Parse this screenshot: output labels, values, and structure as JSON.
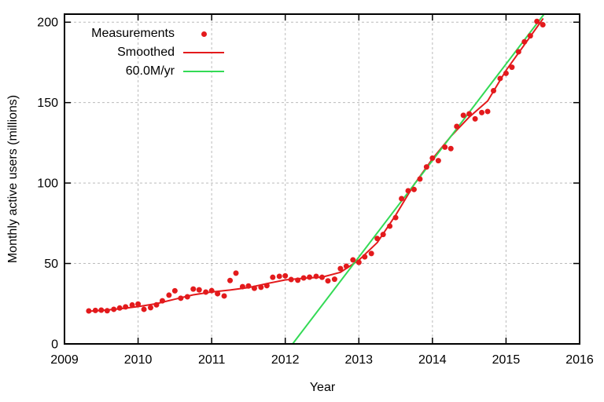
{
  "chart_data": {
    "type": "scatter",
    "title": "",
    "xlabel": "Year",
    "ylabel": "Monthly active users (millions)",
    "xlim": [
      2009,
      2016
    ],
    "ylim": [
      0,
      205
    ],
    "xticks": [
      2009,
      2010,
      2011,
      2012,
      2013,
      2014,
      2015,
      2016
    ],
    "yticks": [
      0,
      50,
      100,
      150,
      200
    ],
    "grid": true,
    "legend_position": "top-left",
    "background": "#ffffff",
    "frame_color": "#000000",
    "grid_color": "#bbbbbb",
    "series": [
      {
        "name": "Measurements",
        "style": "points",
        "marker": "dot",
        "color": "#e31a1c",
        "points": [
          [
            2009.33,
            20.5
          ],
          [
            2009.42,
            20.8
          ],
          [
            2009.5,
            21.0
          ],
          [
            2009.58,
            20.6
          ],
          [
            2009.67,
            21.5
          ],
          [
            2009.75,
            22.3
          ],
          [
            2009.83,
            23.0
          ],
          [
            2009.92,
            24.2
          ],
          [
            2010.0,
            24.8
          ],
          [
            2010.08,
            21.5
          ],
          [
            2010.17,
            22.5
          ],
          [
            2010.25,
            24.3
          ],
          [
            2010.33,
            26.8
          ],
          [
            2010.42,
            30.3
          ],
          [
            2010.5,
            33.0
          ],
          [
            2010.58,
            28.4
          ],
          [
            2010.67,
            29.3
          ],
          [
            2010.75,
            34.1
          ],
          [
            2010.83,
            33.6
          ],
          [
            2010.92,
            32.2
          ],
          [
            2011.0,
            33.1
          ],
          [
            2011.08,
            31.2
          ],
          [
            2011.17,
            29.8
          ],
          [
            2011.25,
            39.4
          ],
          [
            2011.33,
            44.0
          ],
          [
            2011.42,
            35.6
          ],
          [
            2011.5,
            36.0
          ],
          [
            2011.58,
            34.6
          ],
          [
            2011.67,
            35.2
          ],
          [
            2011.75,
            36.2
          ],
          [
            2011.83,
            41.4
          ],
          [
            2011.92,
            42.0
          ],
          [
            2012.0,
            42.3
          ],
          [
            2012.08,
            40.0
          ],
          [
            2012.17,
            39.6
          ],
          [
            2012.25,
            41.0
          ],
          [
            2012.33,
            41.5
          ],
          [
            2012.42,
            42.0
          ],
          [
            2012.5,
            41.4
          ],
          [
            2012.58,
            39.2
          ],
          [
            2012.67,
            40.2
          ],
          [
            2012.75,
            46.8
          ],
          [
            2012.83,
            48.3
          ],
          [
            2012.92,
            52.2
          ],
          [
            2013.0,
            50.7
          ],
          [
            2013.08,
            54.1
          ],
          [
            2013.17,
            56.2
          ],
          [
            2013.25,
            65.5
          ],
          [
            2013.33,
            68.0
          ],
          [
            2013.42,
            73.2
          ],
          [
            2013.5,
            78.5
          ],
          [
            2013.58,
            90.3
          ],
          [
            2013.67,
            95.2
          ],
          [
            2013.75,
            96.0
          ],
          [
            2013.83,
            102.5
          ],
          [
            2013.92,
            110.0
          ],
          [
            2014.0,
            115.5
          ],
          [
            2014.08,
            113.9
          ],
          [
            2014.17,
            122.3
          ],
          [
            2014.25,
            121.4
          ],
          [
            2014.33,
            135.2
          ],
          [
            2014.42,
            142.1
          ],
          [
            2014.5,
            143.0
          ],
          [
            2014.58,
            139.9
          ],
          [
            2014.67,
            143.8
          ],
          [
            2014.75,
            144.5
          ],
          [
            2014.83,
            157.4
          ],
          [
            2014.92,
            165.0
          ],
          [
            2015.0,
            168.2
          ],
          [
            2015.08,
            172.0
          ],
          [
            2015.17,
            181.6
          ],
          [
            2015.25,
            187.8
          ],
          [
            2015.33,
            191.5
          ],
          [
            2015.42,
            200.5
          ],
          [
            2015.5,
            198.4
          ]
        ]
      },
      {
        "name": "Smoothed",
        "style": "line",
        "color": "#e31a1c",
        "points": [
          [
            2009.33,
            20.3
          ],
          [
            2009.5,
            20.8
          ],
          [
            2009.75,
            21.8
          ],
          [
            2010.0,
            23.2
          ],
          [
            2010.25,
            25.0
          ],
          [
            2010.5,
            27.8
          ],
          [
            2010.75,
            30.5
          ],
          [
            2011.0,
            32.3
          ],
          [
            2011.25,
            33.5
          ],
          [
            2011.5,
            35.0
          ],
          [
            2011.75,
            37.5
          ],
          [
            2012.0,
            39.8
          ],
          [
            2012.25,
            40.8
          ],
          [
            2012.5,
            41.5
          ],
          [
            2012.75,
            44.5
          ],
          [
            2013.0,
            52.0
          ],
          [
            2013.25,
            63.0
          ],
          [
            2013.5,
            80.0
          ],
          [
            2013.75,
            99.0
          ],
          [
            2014.0,
            115.0
          ],
          [
            2014.25,
            129.0
          ],
          [
            2014.5,
            141.0
          ],
          [
            2014.75,
            151.0
          ],
          [
            2015.0,
            170.0
          ],
          [
            2015.25,
            186.0
          ],
          [
            2015.5,
            202.0
          ]
        ]
      },
      {
        "name": "60.0M/yr",
        "style": "line",
        "color": "#33da55",
        "points": [
          [
            2012.1,
            0
          ],
          [
            2015.517,
            205
          ]
        ]
      }
    ]
  }
}
